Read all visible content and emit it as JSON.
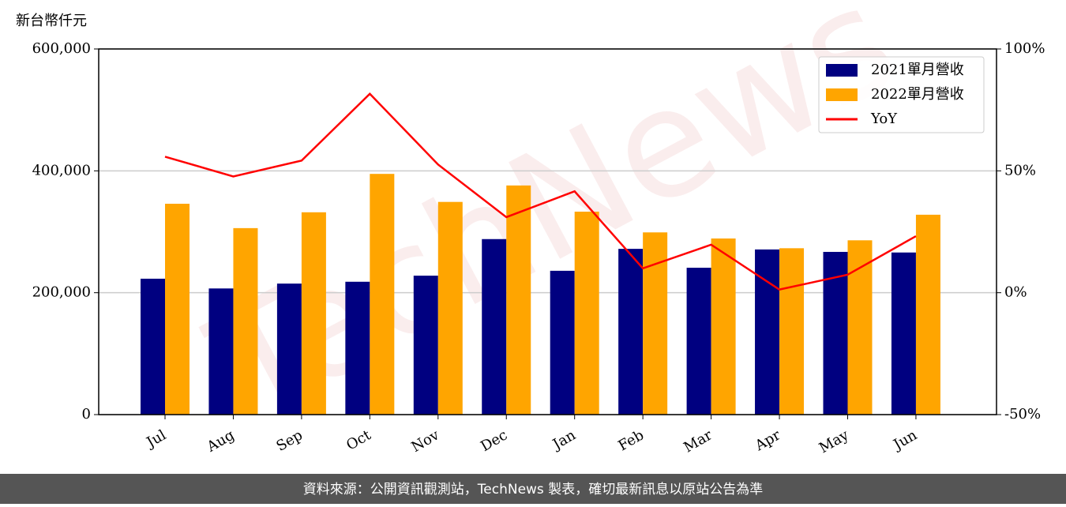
{
  "chart_data": {
    "type": "bar_line",
    "y_label": "新台幣仟元",
    "watermark": "TechNews",
    "footer": "資料來源：公開資訊觀測站，TechNews 製表，確切最新訊息以原站公告為準",
    "categories": [
      "Jul",
      "Aug",
      "Sep",
      "Oct",
      "Nov",
      "Dec",
      "Jan",
      "Feb",
      "Mar",
      "Apr",
      "May",
      "Jun"
    ],
    "series": [
      {
        "name": "2021單月營收",
        "color": "#000080",
        "type": "bar",
        "values": [
          223000,
          207000,
          215000,
          218000,
          228000,
          288000,
          236000,
          272000,
          241000,
          271000,
          267000,
          266000
        ]
      },
      {
        "name": "2022單月營收",
        "color": "#ffa500",
        "type": "bar",
        "values": [
          346000,
          306000,
          332000,
          395000,
          349000,
          376000,
          333000,
          299000,
          289000,
          273000,
          286000,
          328000
        ]
      },
      {
        "name": "YoY",
        "color": "#ff0000",
        "type": "line",
        "axis": "y2",
        "values": [
          55.8,
          47.7,
          54.2,
          81.6,
          52.6,
          31.0,
          41.6,
          10.0,
          19.7,
          1.3,
          7.4,
          23.2
        ]
      }
    ],
    "ylim": [
      0,
      600000
    ],
    "yticks": [
      0,
      {
        "value": 200000,
        "label": "200,000"
      },
      {
        "value": 400000,
        "label": "400,000"
      },
      {
        "value": 600000,
        "label": "600,000"
      }
    ],
    "y2lim": [
      -50,
      100
    ],
    "y2ticks": [
      {
        "value": -50,
        "label": "-50%"
      },
      {
        "value": 0,
        "label": "0%"
      },
      {
        "value": 50,
        "label": "50%"
      },
      {
        "value": 100,
        "label": "100%"
      }
    ],
    "grid": true,
    "legend": "upper right"
  }
}
